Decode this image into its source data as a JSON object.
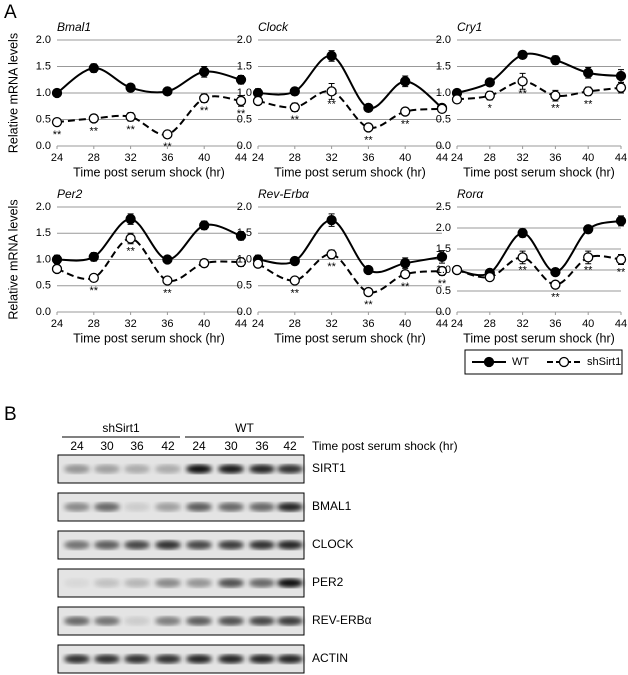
{
  "panel_a_label": "A",
  "chart_data": [
    {
      "type": "line",
      "title": "Bmal1",
      "y_label": "Relative mRNA levels",
      "x_label": "Time post serum shock (hr)",
      "x": [
        24,
        28,
        32,
        36,
        40,
        44
      ],
      "xlim": [
        24,
        44
      ],
      "xticks": [
        24,
        28,
        32,
        36,
        40,
        44
      ],
      "ylim": [
        0,
        2
      ],
      "yticks": [
        {
          "value": 0,
          "label": "0.0"
        },
        0.5,
        {
          "value": 1,
          "label": "1.0"
        },
        1.5,
        {
          "value": 2,
          "label": "2.0"
        }
      ],
      "grid": true,
      "series": [
        {
          "name": "WT",
          "color": "#000000",
          "line_style": "solid",
          "values": [
            1.0,
            1.47,
            1.1,
            1.03,
            1.4,
            1.25
          ],
          "errors": [
            0.05,
            0.08,
            0.07,
            0.06,
            0.1,
            0.08
          ]
        },
        {
          "name": "shSirt1",
          "color": "#000000",
          "line_style": "dashed",
          "values": [
            0.45,
            0.52,
            0.55,
            0.22,
            0.9,
            0.85
          ],
          "errors": [
            0.04,
            0.07,
            0.08,
            0.05,
            0.08,
            0.1
          ],
          "annotations": [
            "**",
            "**",
            "**",
            "**",
            "**",
            "**"
          ]
        }
      ]
    },
    {
      "type": "line",
      "title": "Clock",
      "x_label": "Time post serum shock (hr)",
      "x": [
        24,
        28,
        32,
        36,
        40,
        44
      ],
      "xlim": [
        24,
        44
      ],
      "xticks": [
        24,
        28,
        32,
        36,
        40,
        44
      ],
      "ylim": [
        0,
        2
      ],
      "yticks": [
        {
          "value": 0,
          "label": "0.0"
        },
        0.5,
        {
          "value": 1,
          "label": "1.0"
        },
        1.5,
        {
          "value": 2,
          "label": "2.0"
        }
      ],
      "grid": true,
      "series": [
        {
          "name": "WT",
          "color": "#000000",
          "line_style": "solid",
          "values": [
            1.0,
            1.03,
            1.7,
            0.72,
            1.22,
            0.72
          ],
          "errors": [
            0.08,
            0.07,
            0.1,
            0.06,
            0.1,
            0.05
          ]
        },
        {
          "name": "shSirt1",
          "color": "#000000",
          "line_style": "dashed",
          "values": [
            0.85,
            0.73,
            1.03,
            0.35,
            0.65,
            0.7
          ],
          "errors": [
            0.04,
            0.08,
            0.15,
            0.06,
            0.06,
            0.05
          ],
          "annotations": [
            null,
            "**",
            "**",
            "**",
            "**",
            null
          ]
        }
      ]
    },
    {
      "type": "line",
      "title": "Cry1",
      "x_label": "Time post serum shock (hr)",
      "x": [
        24,
        28,
        32,
        36,
        40,
        44
      ],
      "xlim": [
        24,
        44
      ],
      "xticks": [
        24,
        28,
        32,
        36,
        40,
        44
      ],
      "ylim": [
        0,
        2
      ],
      "yticks": [
        {
          "value": 0,
          "label": "0.0"
        },
        0.5,
        {
          "value": 1,
          "label": "1.0"
        },
        1.5,
        {
          "value": 2,
          "label": "2.0"
        }
      ],
      "grid": true,
      "series": [
        {
          "name": "WT",
          "color": "#000000",
          "line_style": "solid",
          "values": [
            1.0,
            1.2,
            1.72,
            1.62,
            1.38,
            1.32
          ],
          "errors": [
            0.06,
            0.06,
            0.07,
            0.08,
            0.1,
            0.12
          ]
        },
        {
          "name": "shSirt1",
          "color": "#000000",
          "line_style": "dashed",
          "values": [
            0.88,
            0.95,
            1.22,
            0.95,
            1.03,
            1.1
          ],
          "errors": [
            0.04,
            0.08,
            0.15,
            0.1,
            0.08,
            0.1
          ],
          "annotations": [
            null,
            "*",
            "**",
            "**",
            "**",
            null
          ]
        }
      ]
    },
    {
      "type": "line",
      "title": "Per2",
      "y_label": "Relative mRNA levels",
      "x_label": "Time post serum shock (hr)",
      "x": [
        24,
        28,
        32,
        36,
        40,
        44
      ],
      "xlim": [
        24,
        44
      ],
      "xticks": [
        24,
        28,
        32,
        36,
        40,
        44
      ],
      "ylim": [
        0,
        2
      ],
      "yticks": [
        {
          "value": 0,
          "label": "0.0"
        },
        0.5,
        {
          "value": 1,
          "label": "1.0"
        },
        1.5,
        {
          "value": 2,
          "label": "2.0"
        }
      ],
      "grid": true,
      "series": [
        {
          "name": "WT",
          "color": "#000000",
          "line_style": "solid",
          "values": [
            1.0,
            1.05,
            1.77,
            1.0,
            1.65,
            1.45
          ],
          "errors": [
            0.08,
            0.08,
            0.1,
            0.05,
            0.08,
            0.08
          ]
        },
        {
          "name": "shSirt1",
          "color": "#000000",
          "line_style": "dashed",
          "values": [
            0.82,
            0.65,
            1.4,
            0.6,
            0.93,
            0.95
          ],
          "errors": [
            0.04,
            0.05,
            0.1,
            0.05,
            0.06,
            0.08
          ],
          "annotations": [
            null,
            "**",
            "**",
            "**",
            null,
            null
          ]
        }
      ]
    },
    {
      "type": "line",
      "title": "Rev-Erbα",
      "x_label": "Time post serum shock (hr)",
      "x": [
        24,
        28,
        32,
        36,
        40,
        44
      ],
      "xlim": [
        24,
        44
      ],
      "xticks": [
        24,
        28,
        32,
        36,
        40,
        44
      ],
      "ylim": [
        0,
        2
      ],
      "yticks": [
        {
          "value": 0,
          "label": "0.0"
        },
        0.5,
        {
          "value": 1,
          "label": "1.0"
        },
        1.5,
        {
          "value": 2,
          "label": "2.0"
        }
      ],
      "grid": true,
      "series": [
        {
          "name": "WT",
          "color": "#000000",
          "line_style": "solid",
          "values": [
            1.0,
            0.97,
            1.75,
            0.8,
            0.93,
            1.05
          ],
          "errors": [
            0.08,
            0.07,
            0.12,
            0.05,
            0.1,
            0.12
          ]
        },
        {
          "name": "shSirt1",
          "color": "#000000",
          "line_style": "dashed",
          "values": [
            0.92,
            0.6,
            1.1,
            0.38,
            0.72,
            0.78
          ],
          "errors": [
            0.04,
            0.05,
            0.08,
            0.05,
            0.06,
            0.08
          ],
          "annotations": [
            null,
            "**",
            "**",
            "**",
            "**",
            "**"
          ]
        }
      ]
    },
    {
      "type": "line",
      "title": "Rorα",
      "x_label": "Time post serum shock (hr)",
      "x": [
        24,
        28,
        32,
        36,
        40,
        44
      ],
      "xlim": [
        24,
        44
      ],
      "xticks": [
        24,
        28,
        32,
        36,
        40,
        44
      ],
      "ylim": [
        0,
        2.5
      ],
      "yticks": [
        {
          "value": 0,
          "label": "0.0"
        },
        0.5,
        {
          "value": 1,
          "label": "1.0"
        },
        1.5,
        {
          "value": 2,
          "label": "2.0"
        },
        2.5
      ],
      "grid": true,
      "series": [
        {
          "name": "WT",
          "color": "#000000",
          "line_style": "solid",
          "values": [
            1.0,
            0.93,
            1.88,
            0.95,
            1.97,
            2.17
          ],
          "errors": [
            0.05,
            0.05,
            0.1,
            0.05,
            0.08,
            0.12
          ]
        },
        {
          "name": "shSirt1",
          "color": "#000000",
          "line_style": "dashed",
          "values": [
            1.0,
            0.83,
            1.3,
            0.65,
            1.3,
            1.25
          ],
          "errors": [
            0.05,
            0.05,
            0.15,
            0.05,
            0.15,
            0.12
          ],
          "annotations": [
            null,
            null,
            "**",
            "**",
            "**",
            "**"
          ]
        }
      ]
    }
  ],
  "panel_b": {
    "label": "B",
    "groups": [
      {
        "name": "shSirt1",
        "lanes": [
          "24",
          "30",
          "36",
          "42"
        ]
      },
      {
        "name": "WT",
        "lanes": [
          "24",
          "30",
          "36",
          "42"
        ]
      }
    ],
    "x_label": "Time post serum shock (hr)",
    "bands": [
      "SIRT1",
      "BMAL1",
      "CLOCK",
      "PER2",
      "REV-ERBα",
      "ACTIN"
    ]
  }
}
